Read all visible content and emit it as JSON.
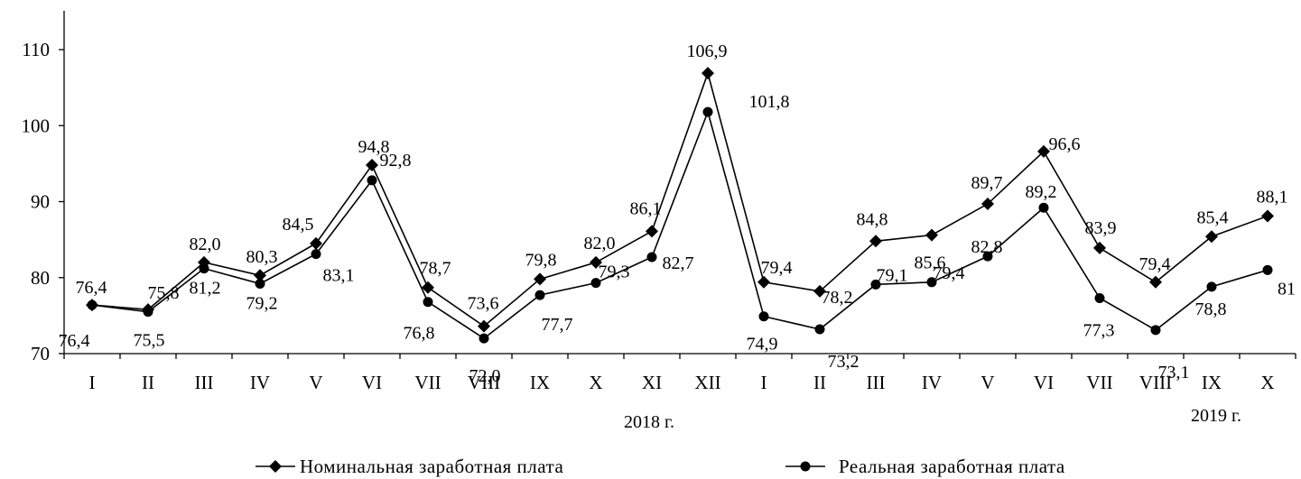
{
  "chart_data": {
    "type": "line",
    "title": "",
    "xlabel": "",
    "ylabel": "",
    "ylim": [
      70,
      110
    ],
    "yticks": [
      "70",
      "80",
      "90",
      "100",
      "110"
    ],
    "categories": [
      "I",
      "II",
      "III",
      "IV",
      "V",
      "VI",
      "VII",
      "VIII",
      "IX",
      "X",
      "XI",
      "XII",
      "I",
      "II",
      "III",
      "IV",
      "V",
      "VI",
      "VII",
      "VIII",
      "IX",
      "X"
    ],
    "year_labels": [
      "2018 г.",
      "2019 г."
    ],
    "grid": false,
    "legend_position": "bottom",
    "series": [
      {
        "name": "Номинальная заработная плата",
        "marker": "diamond",
        "color": "#000000",
        "values": [
          76.4,
          75.8,
          82.0,
          80.3,
          84.5,
          94.8,
          78.7,
          73.6,
          79.8,
          82.0,
          86.1,
          106.9,
          79.4,
          78.2,
          84.8,
          85.6,
          89.7,
          96.6,
          83.9,
          79.4,
          85.4,
          88.1
        ],
        "labels": [
          "76,4",
          "75,8",
          "82,0",
          "80,3",
          "84,5",
          "94,8",
          "78,7",
          "73,6",
          "79,8",
          "82,0",
          "86,1",
          "106,9",
          "79,4",
          "78,2",
          "84,8",
          "85,6",
          "89,7",
          "96,6",
          "83,9",
          "79,4",
          "85,4",
          "88,1"
        ]
      },
      {
        "name": "Реальная заработная плата",
        "marker": "circle",
        "color": "#000000",
        "values": [
          76.4,
          75.5,
          81.2,
          79.2,
          83.1,
          92.8,
          76.8,
          72.0,
          77.7,
          79.3,
          82.7,
          101.8,
          74.9,
          73.2,
          79.1,
          79.4,
          82.8,
          89.2,
          77.3,
          73.1,
          78.8,
          81
        ],
        "labels": [
          "76,4",
          "75,5",
          "81,2",
          "79,2",
          "83,1",
          "92,8",
          "76,8",
          "72,0",
          "77,7",
          "79,3",
          "82,7",
          "101,8",
          "74,9",
          "73,2",
          "79,1",
          "79,4",
          "82,8",
          "89,2",
          "77,3",
          "73,1",
          "78,8",
          "81"
        ]
      }
    ]
  }
}
